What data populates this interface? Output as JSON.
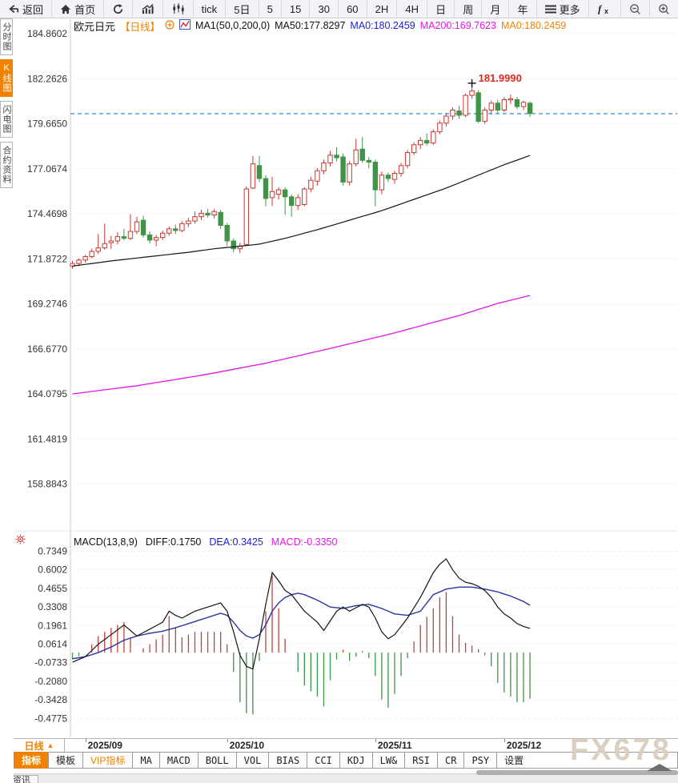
{
  "toolbar": {
    "items": [
      {
        "name": "back",
        "icon": "back-arrow-icon",
        "label": "返回"
      },
      {
        "name": "home",
        "icon": "home-icon",
        "label": "首页"
      },
      {
        "name": "refresh",
        "icon": "refresh-icon",
        "label": ""
      },
      {
        "name": "area-chart",
        "icon": "area-chart-icon",
        "label": ""
      },
      {
        "name": "candle-chart",
        "icon": "candlestick-icon",
        "label": ""
      },
      {
        "name": "tick",
        "label": "tick"
      },
      {
        "name": "5d",
        "label": "5日"
      },
      {
        "name": "m5",
        "label": "5"
      },
      {
        "name": "m15",
        "label": "15"
      },
      {
        "name": "m30",
        "label": "30"
      },
      {
        "name": "m60",
        "label": "60"
      },
      {
        "name": "h2",
        "label": "2H"
      },
      {
        "name": "h4",
        "label": "4H"
      },
      {
        "name": "day",
        "label": "日"
      },
      {
        "name": "week",
        "label": "周"
      },
      {
        "name": "month",
        "label": "月"
      },
      {
        "name": "year",
        "label": "年"
      },
      {
        "name": "more",
        "icon": "menu-icon",
        "label": "更多"
      },
      {
        "name": "fx",
        "icon": "fx-icon",
        "label": ""
      },
      {
        "name": "zoom-out",
        "icon": "zoom-out-icon",
        "label": ""
      },
      {
        "name": "zoom-in",
        "icon": "zoom-in-icon",
        "label": ""
      }
    ]
  },
  "sidebar": {
    "items": [
      {
        "name": "time-share",
        "label": "分时图",
        "selected": false
      },
      {
        "name": "kline",
        "label": "K线图",
        "selected": true
      },
      {
        "name": "lightning",
        "label": "闪电图",
        "selected": false
      },
      {
        "name": "contract-info",
        "label": "合约资料",
        "selected": false
      }
    ]
  },
  "chart_header": {
    "symbol": "欧元日元",
    "period_tag": "【日线】",
    "ma_settings": "MA1(50,0,200,0)",
    "ma50_label": "MA50:177.8297",
    "ma0_blue": "MA0:180.2459",
    "ma200_label": "MA200:169.7623",
    "ma0_orange": "MA0:180.2459"
  },
  "macd_header": {
    "title": "MACD(13,8,9)",
    "diff_label": "DIFF:0.1750",
    "dea_label": "DEA:0.3425",
    "macd_label": "MACD:-0.3350"
  },
  "bottom": {
    "period_selector": {
      "label": "日线",
      "arrow": "▲"
    },
    "tabs": [
      {
        "label": "指标",
        "variant": "sel"
      },
      {
        "label": "模板",
        "variant": ""
      },
      {
        "label": "VIP指标",
        "variant": "vip"
      },
      {
        "label": "MA",
        "variant": "mono"
      },
      {
        "label": "MACD",
        "variant": "mono"
      },
      {
        "label": "BOLL",
        "variant": "mono"
      },
      {
        "label": "VOL",
        "variant": "mono"
      },
      {
        "label": "BIAS",
        "variant": "mono"
      },
      {
        "label": "CCI",
        "variant": "mono"
      },
      {
        "label": "KDJ",
        "variant": "mono"
      },
      {
        "label": "LW&",
        "variant": "mono"
      },
      {
        "label": "RSI",
        "variant": "mono"
      },
      {
        "label": "CR",
        "variant": "mono"
      },
      {
        "label": "PSY",
        "variant": "mono"
      },
      {
        "label": "设置",
        "variant": ""
      }
    ],
    "news_tab": "资讯",
    "watermark": "FX678"
  },
  "chart_data": {
    "type": "candlestick+macd",
    "title": "欧元日元 日线",
    "price_axis": [
      184.8602,
      182.2626,
      179.665,
      177.0674,
      174.4698,
      171.8722,
      169.2746,
      166.677,
      164.0795,
      161.4819,
      158.8843
    ],
    "macd_axis": [
      0.7349,
      0.6002,
      0.4655,
      0.3308,
      0.1961,
      0.0614,
      -0.0733,
      -0.208,
      -0.3428,
      -0.4775
    ],
    "current_price": 180.2459,
    "high_label": "181.9990",
    "high_index": 62,
    "month_ticks": [
      [
        2,
        "2025/09"
      ],
      [
        24,
        "2025/10"
      ],
      [
        47,
        "2025/11"
      ],
      [
        67,
        "2025/12"
      ]
    ],
    "candles": [
      [
        171.45,
        171.75,
        171.3,
        171.6
      ],
      [
        171.6,
        171.9,
        171.45,
        171.8
      ],
      [
        171.8,
        172.1,
        171.65,
        172.0
      ],
      [
        172.0,
        172.45,
        171.9,
        172.3
      ],
      [
        172.3,
        173.3,
        172.15,
        172.5
      ],
      [
        172.5,
        173.9,
        172.4,
        172.75
      ],
      [
        172.8,
        173.2,
        172.45,
        172.9
      ],
      [
        172.9,
        173.4,
        172.7,
        173.15
      ],
      [
        173.15,
        173.6,
        172.95,
        173.05
      ],
      [
        173.05,
        174.45,
        172.95,
        173.45
      ],
      [
        173.45,
        174.3,
        173.3,
        174.0
      ],
      [
        174.1,
        174.35,
        173.1,
        173.25
      ],
      [
        173.25,
        173.45,
        172.75,
        172.95
      ],
      [
        172.95,
        173.25,
        172.6,
        173.1
      ],
      [
        173.1,
        173.5,
        172.95,
        173.35
      ],
      [
        173.35,
        173.75,
        173.2,
        173.6
      ],
      [
        173.6,
        173.85,
        173.3,
        173.5
      ],
      [
        173.5,
        174.05,
        173.4,
        173.9
      ],
      [
        173.9,
        174.25,
        173.7,
        174.05
      ],
      [
        174.05,
        174.6,
        173.9,
        174.3
      ],
      [
        174.3,
        174.7,
        174.1,
        174.5
      ],
      [
        174.5,
        174.75,
        174.25,
        174.4
      ],
      [
        174.4,
        174.75,
        174.2,
        174.6
      ],
      [
        174.55,
        174.7,
        173.6,
        173.8
      ],
      [
        173.8,
        173.95,
        172.6,
        172.9
      ],
      [
        172.9,
        173.05,
        172.25,
        172.45
      ],
      [
        172.45,
        172.8,
        172.2,
        172.6
      ],
      [
        172.7,
        176.05,
        172.6,
        175.9
      ],
      [
        175.95,
        177.8,
        175.9,
        177.35
      ],
      [
        177.25,
        177.8,
        176.3,
        176.5
      ],
      [
        176.5,
        176.7,
        174.9,
        175.35
      ],
      [
        175.4,
        176.6,
        174.9,
        175.75
      ],
      [
        175.6,
        176.0,
        175.3,
        175.85
      ],
      [
        175.85,
        176.0,
        174.4,
        175.45
      ],
      [
        175.45,
        175.6,
        174.3,
        174.95
      ],
      [
        174.95,
        175.6,
        174.7,
        175.4
      ],
      [
        175.0,
        176.0,
        174.9,
        175.9
      ],
      [
        175.9,
        176.6,
        175.7,
        176.4
      ],
      [
        176.35,
        177.1,
        176.1,
        176.95
      ],
      [
        176.95,
        177.6,
        176.75,
        177.4
      ],
      [
        177.4,
        178.1,
        177.2,
        177.85
      ],
      [
        177.85,
        178.3,
        177.5,
        177.7
      ],
      [
        177.75,
        177.95,
        176.1,
        176.3
      ],
      [
        176.3,
        177.5,
        176.1,
        177.35
      ],
      [
        177.35,
        178.8,
        177.2,
        178.15
      ],
      [
        178.2,
        178.9,
        177.4,
        177.55
      ],
      [
        177.55,
        177.75,
        177.1,
        177.45
      ],
      [
        177.45,
        177.6,
        174.9,
        175.85
      ],
      [
        175.85,
        176.9,
        175.6,
        176.7
      ],
      [
        176.7,
        176.85,
        176.3,
        176.5
      ],
      [
        176.45,
        176.95,
        176.2,
        176.8
      ],
      [
        176.8,
        177.4,
        176.6,
        177.25
      ],
      [
        177.25,
        178.15,
        177.1,
        178.0
      ],
      [
        178.0,
        178.6,
        177.85,
        178.45
      ],
      [
        178.45,
        178.9,
        178.2,
        178.7
      ],
      [
        178.7,
        179.1,
        178.4,
        178.55
      ],
      [
        178.55,
        179.35,
        178.45,
        179.2
      ],
      [
        179.2,
        179.85,
        179.05,
        179.7
      ],
      [
        179.7,
        180.25,
        179.5,
        180.1
      ],
      [
        180.1,
        180.6,
        179.9,
        180.45
      ],
      [
        180.4,
        180.7,
        179.95,
        180.15
      ],
      [
        180.15,
        181.4,
        180.05,
        181.3
      ],
      [
        181.3,
        182.0,
        181.1,
        181.55
      ],
      [
        181.45,
        181.6,
        179.7,
        179.8
      ],
      [
        179.8,
        180.6,
        179.65,
        180.45
      ],
      [
        180.45,
        181.0,
        180.2,
        180.85
      ],
      [
        180.85,
        181.05,
        180.25,
        180.45
      ],
      [
        180.45,
        181.2,
        180.35,
        181.05
      ],
      [
        181.05,
        181.35,
        180.8,
        181.1
      ],
      [
        181.05,
        181.2,
        180.5,
        180.65
      ],
      [
        180.65,
        181.0,
        180.45,
        180.9
      ],
      [
        180.85,
        180.95,
        180.05,
        180.25
      ]
    ],
    "ma50_points": [
      [
        0,
        171.45
      ],
      [
        6,
        171.75
      ],
      [
        12,
        172.0
      ],
      [
        18,
        172.25
      ],
      [
        22,
        172.45
      ],
      [
        26,
        172.6
      ],
      [
        29,
        172.72
      ],
      [
        33,
        173.05
      ],
      [
        38,
        173.55
      ],
      [
        43,
        174.1
      ],
      [
        48,
        174.65
      ],
      [
        53,
        175.3
      ],
      [
        58,
        175.95
      ],
      [
        63,
        176.7
      ],
      [
        67,
        177.3
      ],
      [
        71,
        177.83
      ]
    ],
    "ma200_points": [
      [
        0,
        164.08
      ],
      [
        10,
        164.55
      ],
      [
        20,
        165.15
      ],
      [
        30,
        165.85
      ],
      [
        40,
        166.7
      ],
      [
        50,
        167.6
      ],
      [
        60,
        168.6
      ],
      [
        66,
        169.3
      ],
      [
        71,
        169.76
      ]
    ],
    "diff_points": [
      [
        0,
        -0.07
      ],
      [
        2,
        -0.03
      ],
      [
        4,
        0.06
      ],
      [
        6,
        0.13
      ],
      [
        8,
        0.2
      ],
      [
        9,
        0.16
      ],
      [
        10,
        0.12
      ],
      [
        12,
        0.17
      ],
      [
        14,
        0.22
      ],
      [
        15,
        0.3
      ],
      [
        16,
        0.27
      ],
      [
        17,
        0.25
      ],
      [
        19,
        0.3
      ],
      [
        21,
        0.33
      ],
      [
        23,
        0.36
      ],
      [
        24,
        0.3
      ],
      [
        25,
        0.15
      ],
      [
        26,
        -0.02
      ],
      [
        27,
        -0.1
      ],
      [
        28,
        -0.12
      ],
      [
        29,
        0.1
      ],
      [
        30,
        0.35
      ],
      [
        31,
        0.58
      ],
      [
        32,
        0.52
      ],
      [
        33,
        0.45
      ],
      [
        34,
        0.42
      ],
      [
        36,
        0.3
      ],
      [
        38,
        0.22
      ],
      [
        39,
        0.16
      ],
      [
        41,
        0.3
      ],
      [
        42,
        0.33
      ],
      [
        43,
        0.3
      ],
      [
        45,
        0.35
      ],
      [
        46,
        0.33
      ],
      [
        47,
        0.25
      ],
      [
        48,
        0.15
      ],
      [
        49,
        0.1
      ],
      [
        50,
        0.13
      ],
      [
        52,
        0.25
      ],
      [
        54,
        0.4
      ],
      [
        56,
        0.58
      ],
      [
        57,
        0.64
      ],
      [
        58,
        0.68
      ],
      [
        59,
        0.6
      ],
      [
        60,
        0.54
      ],
      [
        61,
        0.51
      ],
      [
        62,
        0.5
      ],
      [
        63,
        0.48
      ],
      [
        64,
        0.45
      ],
      [
        65,
        0.4
      ],
      [
        66,
        0.33
      ],
      [
        67,
        0.28
      ],
      [
        68,
        0.25
      ],
      [
        69,
        0.21
      ],
      [
        70,
        0.19
      ],
      [
        71,
        0.175
      ]
    ],
    "dea_points": [
      [
        0,
        -0.045
      ],
      [
        2,
        -0.03
      ],
      [
        4,
        0.0
      ],
      [
        6,
        0.04
      ],
      [
        8,
        0.09
      ],
      [
        10,
        0.12
      ],
      [
        12,
        0.14
      ],
      [
        14,
        0.155
      ],
      [
        16,
        0.18
      ],
      [
        18,
        0.21
      ],
      [
        20,
        0.24
      ],
      [
        22,
        0.27
      ],
      [
        23,
        0.285
      ],
      [
        24,
        0.27
      ],
      [
        25,
        0.22
      ],
      [
        26,
        0.16
      ],
      [
        27,
        0.12
      ],
      [
        28,
        0.105
      ],
      [
        29,
        0.13
      ],
      [
        30,
        0.2
      ],
      [
        31,
        0.3
      ],
      [
        32,
        0.36
      ],
      [
        33,
        0.4
      ],
      [
        34,
        0.42
      ],
      [
        35,
        0.43
      ],
      [
        36,
        0.42
      ],
      [
        38,
        0.38
      ],
      [
        40,
        0.33
      ],
      [
        42,
        0.32
      ],
      [
        44,
        0.34
      ],
      [
        46,
        0.35
      ],
      [
        48,
        0.32
      ],
      [
        50,
        0.28
      ],
      [
        52,
        0.27
      ],
      [
        54,
        0.3
      ],
      [
        56,
        0.42
      ],
      [
        58,
        0.46
      ],
      [
        60,
        0.475
      ],
      [
        62,
        0.475
      ],
      [
        64,
        0.46
      ],
      [
        66,
        0.44
      ],
      [
        68,
        0.41
      ],
      [
        70,
        0.37
      ],
      [
        71,
        0.3425
      ]
    ],
    "colors": {
      "up": "#c9392f",
      "down": "#3f9447",
      "ma50": "#141414",
      "ma200": "#e517e5",
      "price_line": "#1b7fd8",
      "grid": "#dcdcdc",
      "diff": "#141414",
      "dea": "#2a35a0",
      "hist_pos": "#b8453c",
      "hist_neg": "#3f9447",
      "high_label": "#e02a20",
      "axis_text": "#333333",
      "accent_orange": "#ef8200"
    }
  }
}
